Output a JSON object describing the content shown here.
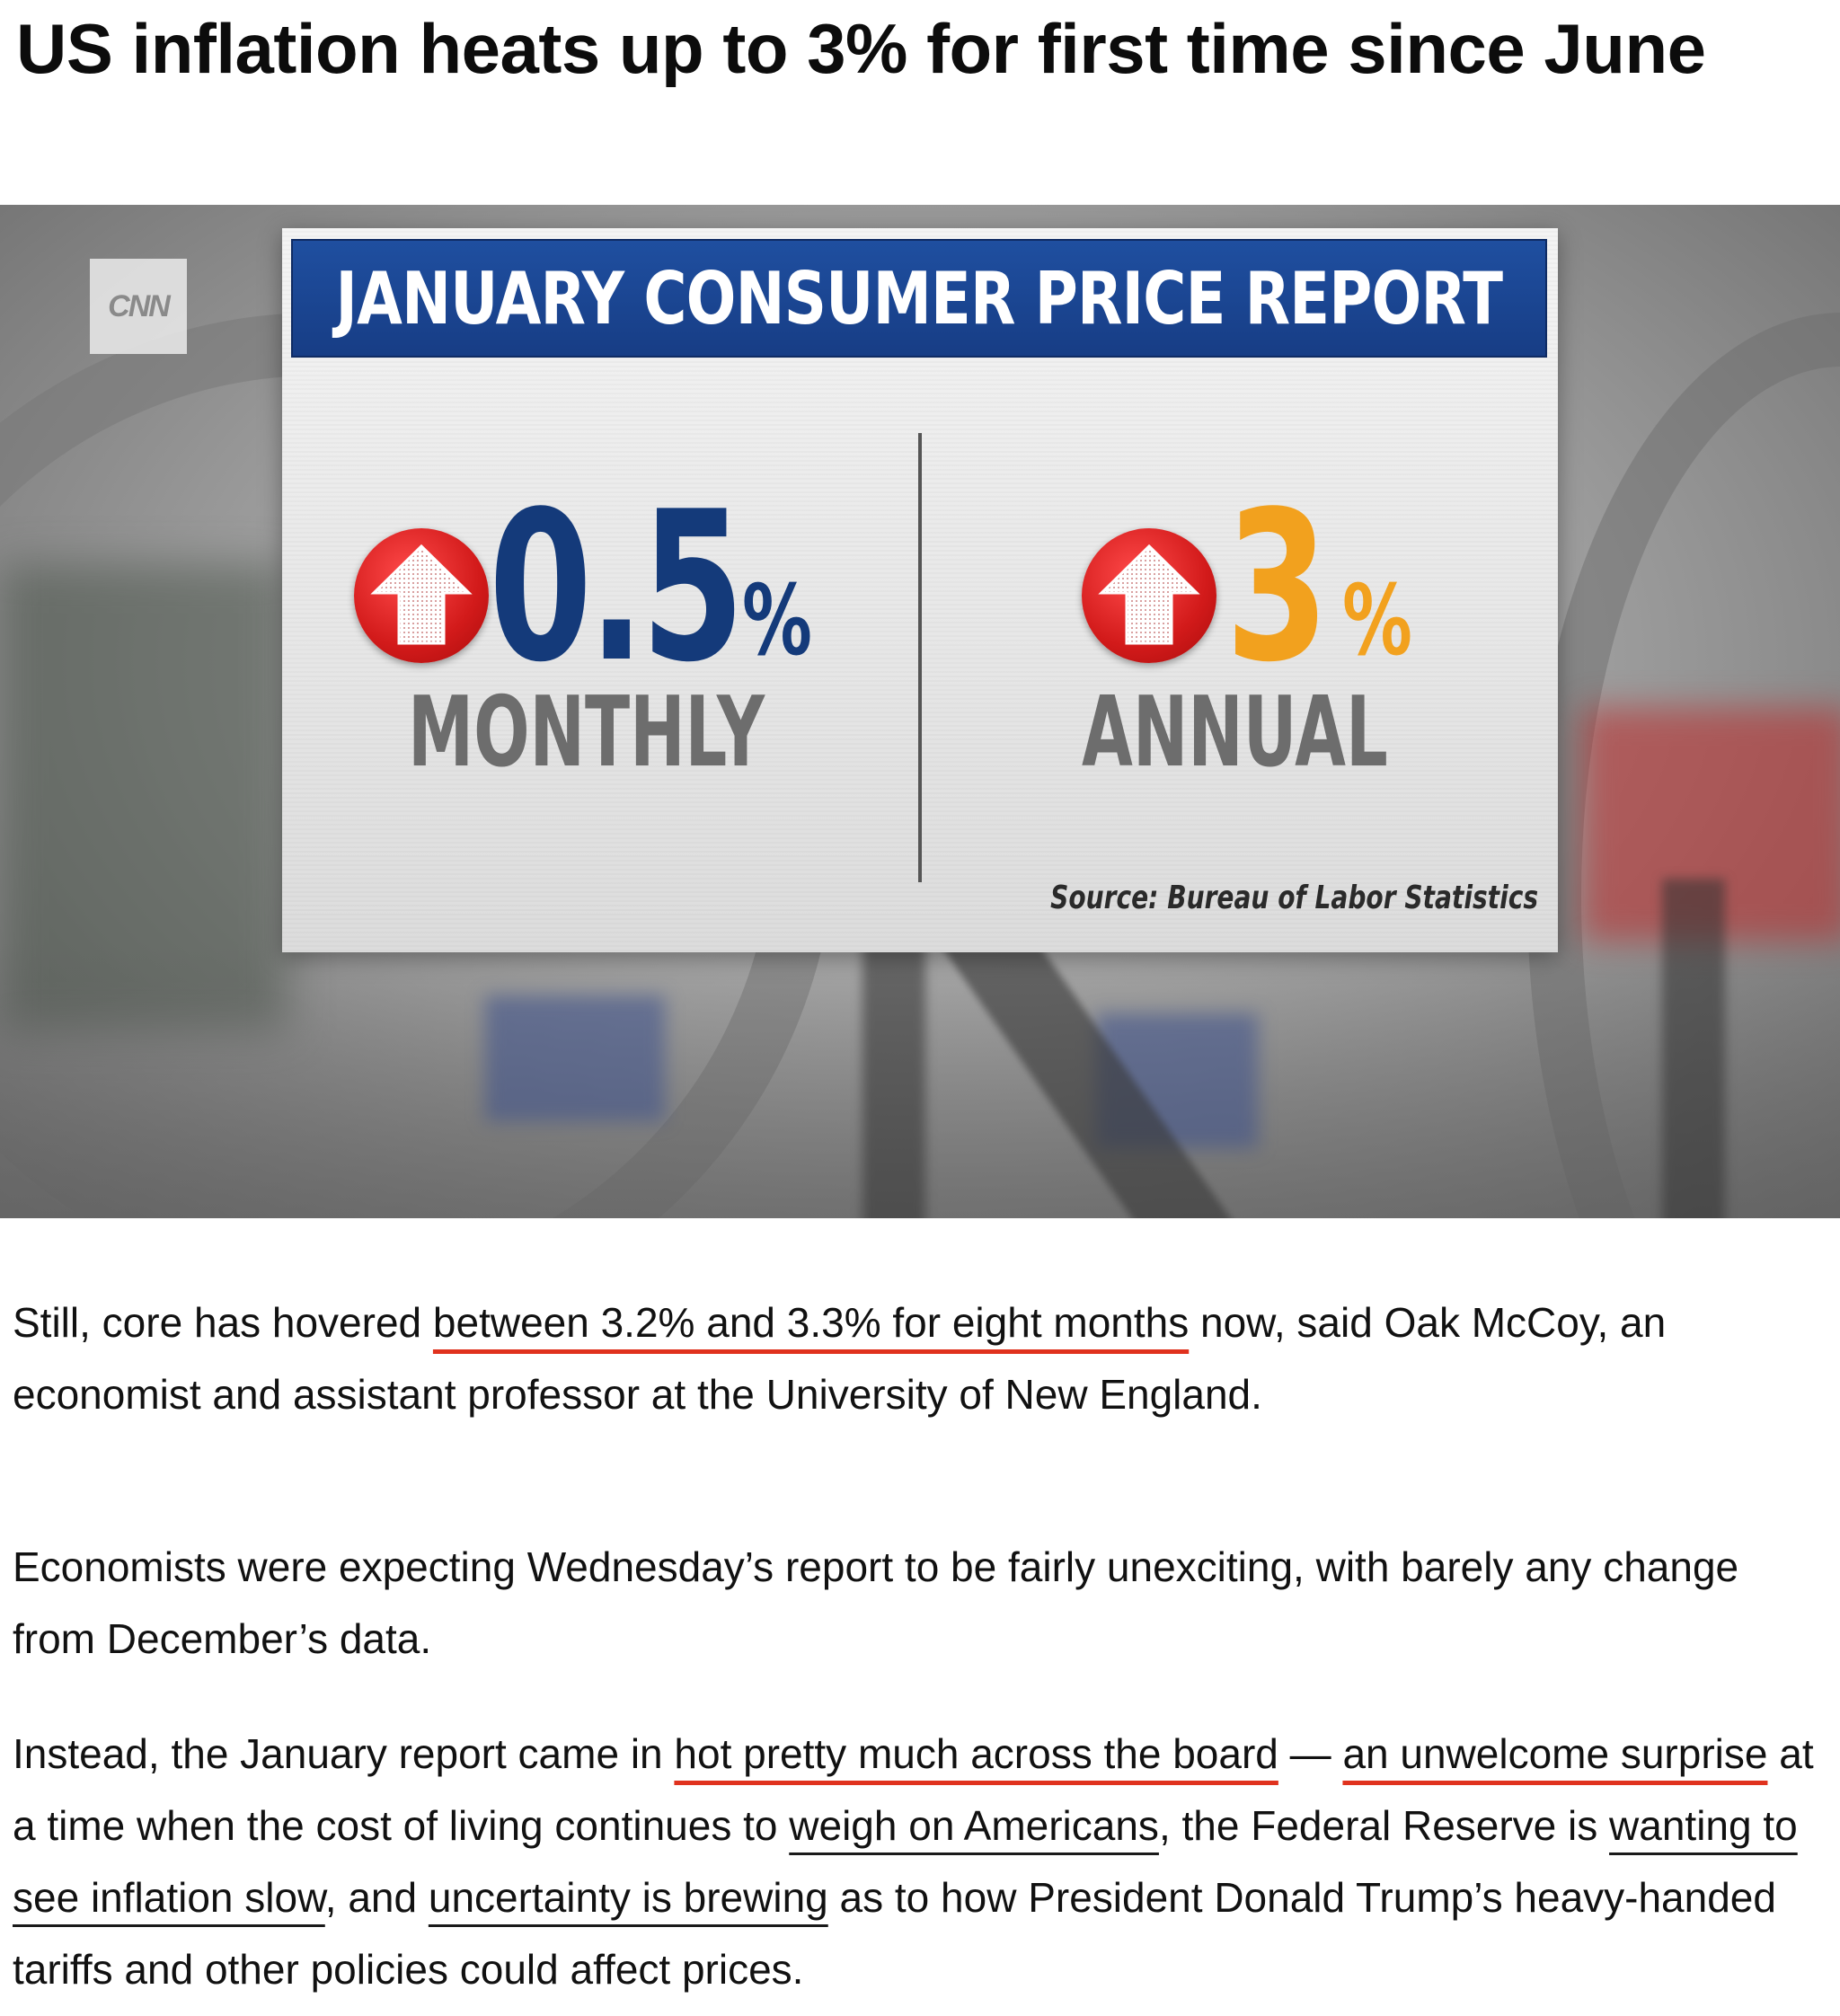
{
  "article": {
    "headline": "US inflation heats up to 3% for first time since June"
  },
  "hero_graphic": {
    "logo_text": "CNN",
    "banner_title": "JANUARY CONSUMER PRICE REPORT",
    "monthly": {
      "value": "0.5",
      "unit": "%",
      "label": "MONTHLY",
      "arrow_color": "#d21a1a",
      "value_color": "#143a7a"
    },
    "annual": {
      "value": "3",
      "unit": "%",
      "label": "ANNUAL",
      "arrow_color": "#d21a1a",
      "value_color": "#f2a11e"
    },
    "source": "Source: Bureau of Labor Statistics",
    "banner_color": "#1f4fa0"
  },
  "body": {
    "p1": {
      "a": "Still, core has hovered ",
      "b": "between 3.2% and 3.3% for eight months",
      "c": " now, said Oak McCoy, an economist and assistant professor at the University of New England."
    },
    "p2": {
      "text": "Economists were expecting Wednesday’s report to be fairly unexciting, with barely any change from December’s data."
    },
    "p3": {
      "a": "Instead, the January report came in ",
      "b": "hot pretty much across the board",
      "c": " — ",
      "d": "an unwelcome surprise",
      "e": " at a time when the cost of living continues to ",
      "f": "weigh on Americans",
      "g": ", the Federal Reserve is ",
      "h": "wanting to see inflation slow",
      "i": ", and ",
      "j": "uncertainty is brewing",
      "k": " as to how President Donald Trump’s heavy-handed tariffs and other policies could affect prices."
    },
    "highlight_colors": {
      "red_underline": "#e0321e",
      "black_underline": "#1a1a1a"
    }
  }
}
